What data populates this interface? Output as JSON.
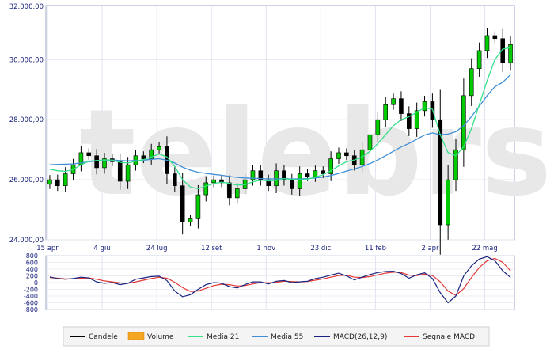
{
  "chart_data": {
    "type": "candlestick",
    "watermark": "telebrsa",
    "price_axis": {
      "ylim": [
        24000,
        31800
      ],
      "tick_values": [
        24000,
        26000,
        28000,
        30000,
        32000
      ],
      "tick_labels": [
        "24.000,00",
        "26.000,00",
        "28.000,00",
        "30.000,00",
        "32.000,00"
      ]
    },
    "macd_axis": {
      "ylim": [
        -800,
        800
      ],
      "tick_values": [
        800,
        600,
        400,
        200,
        0,
        -200,
        -400,
        -600,
        -800
      ],
      "tick_labels": [
        "800",
        "600",
        "400",
        "200",
        "0",
        "-200",
        "-400",
        "-600",
        "-800"
      ]
    },
    "x_axis": {
      "bars": 60,
      "tick_labels": [
        "15 apr",
        "4 giu",
        "24 lug",
        "12 set",
        "1 nov",
        "23 dic",
        "11 feb",
        "2 apr",
        "22 mag"
      ],
      "tick_positions": [
        0,
        7,
        14,
        21,
        28,
        35,
        42,
        49,
        56
      ]
    },
    "series": [
      {
        "name": "Candele",
        "color": "#000000",
        "up_color": "#00cc00",
        "down_color": "#000000"
      },
      {
        "name": "Volume",
        "color": "#f5a623"
      },
      {
        "name": "Media 21",
        "color": "#34e08a"
      },
      {
        "name": "Media 55",
        "color": "#3f8fd8"
      },
      {
        "name": "MACD(26,12,9)",
        "color": "#1a237e"
      },
      {
        "name": "Segnale MACD",
        "color": "#e53935"
      }
    ],
    "close": [
      26000,
      25800,
      26200,
      26500,
      26900,
      26800,
      26400,
      26700,
      26600,
      25950,
      26500,
      26800,
      26700,
      27000,
      27100,
      26200,
      25800,
      24600,
      24700,
      25500,
      25900,
      26000,
      25900,
      25400,
      25700,
      26000,
      26300,
      26000,
      25800,
      26300,
      26000,
      25700,
      26200,
      26100,
      26300,
      26200,
      26700,
      26900,
      26800,
      26500,
      27000,
      27500,
      28000,
      28500,
      28700,
      28200,
      27700,
      28300,
      28600,
      28000,
      24500,
      26000,
      27000,
      28800,
      29700,
      30300,
      30800,
      30700,
      29900,
      30500
    ],
    "ma21": [
      26350,
      26300,
      26280,
      26340,
      26500,
      26620,
      26640,
      26660,
      26660,
      26580,
      26560,
      26620,
      26670,
      26760,
      26860,
      26760,
      26450,
      26000,
      25760,
      25700,
      25790,
      25880,
      25920,
      25880,
      25820,
      25840,
      25930,
      25990,
      25960,
      25980,
      26040,
      26010,
      26000,
      26020,
      26090,
      26170,
      26300,
      26460,
      26600,
      26660,
      26760,
      26950,
      27200,
      27500,
      27800,
      28000,
      28100,
      28250,
      28400,
      28350,
      27500,
      26900,
      26800,
      27100,
      27700,
      28500,
      29300,
      30000,
      30350,
      30400
    ],
    "ma55": [
      26500,
      26510,
      26520,
      26530,
      26560,
      26600,
      26630,
      26650,
      26660,
      26640,
      26630,
      26640,
      26650,
      26680,
      26700,
      26650,
      26560,
      26420,
      26320,
      26250,
      26210,
      26180,
      26150,
      26110,
      26080,
      26060,
      26050,
      26040,
      26030,
      26030,
      26040,
      26030,
      26030,
      26040,
      26060,
      26090,
      26140,
      26210,
      26290,
      26360,
      26440,
      26540,
      26660,
      26800,
      26950,
      27090,
      27210,
      27350,
      27490,
      27560,
      27500,
      27520,
      27600,
      27800,
      28100,
      28450,
      28800,
      29100,
      29250,
      29500
    ],
    "macd": [
      170,
      120,
      100,
      120,
      160,
      140,
      20,
      -20,
      0,
      -60,
      -20,
      100,
      140,
      180,
      190,
      60,
      -250,
      -420,
      -360,
      -200,
      -60,
      0,
      -20,
      -120,
      -160,
      -60,
      20,
      20,
      -40,
      40,
      60,
      0,
      20,
      40,
      120,
      160,
      220,
      280,
      200,
      80,
      160,
      240,
      300,
      330,
      340,
      270,
      130,
      230,
      290,
      120,
      -300,
      -600,
      -400,
      200,
      500,
      700,
      770,
      650,
      350,
      150
    ],
    "signal": [
      150,
      130,
      110,
      110,
      130,
      140,
      100,
      50,
      20,
      -10,
      -20,
      20,
      70,
      120,
      160,
      130,
      10,
      -150,
      -260,
      -250,
      -170,
      -90,
      -50,
      -60,
      -100,
      -90,
      -40,
      0,
      -10,
      10,
      40,
      30,
      20,
      30,
      70,
      110,
      160,
      210,
      220,
      160,
      150,
      180,
      230,
      280,
      310,
      300,
      220,
      210,
      250,
      210,
      20,
      -250,
      -380,
      -180,
      150,
      450,
      650,
      720,
      600,
      350
    ]
  }
}
